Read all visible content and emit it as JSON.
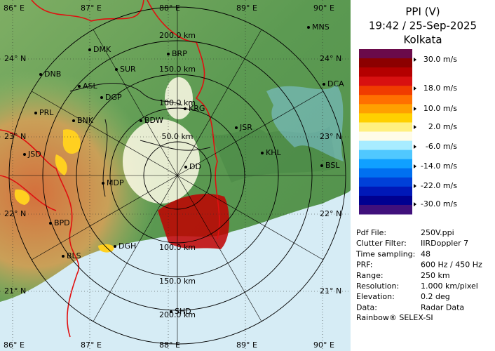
{
  "map": {
    "longitude_labels": [
      "86° E",
      "87° E",
      "88° E",
      "89° E",
      "90° E"
    ],
    "latitude_labels": [
      "24° N",
      "23° N",
      "22° N",
      "21° N"
    ],
    "range_labels": [
      "50.0 km",
      "100.0 km",
      "150.0 km",
      "200.0 km"
    ],
    "places": [
      "MNS",
      "DMK",
      "BRP",
      "DNB",
      "SUR",
      "ASL",
      "DGP",
      "DCA",
      "PRL",
      "BNK",
      "KRG",
      "BDW",
      "JSR",
      "JSD",
      "KHL",
      "BSL",
      "DD",
      "MDP",
      "BPD",
      "DGH",
      "BLS",
      "SHD"
    ]
  },
  "panel": {
    "title": "PPI (V)",
    "time": "19:42 / 25-Sep-2025",
    "site": "Kolkata",
    "scale": {
      "colors": [
        "#6a0a4a",
        "#8c0000",
        "#b40000",
        "#d81010",
        "#f03c00",
        "#ff7000",
        "#ffa000",
        "#ffd000",
        "#fff080",
        "#fffce8",
        "#a8ecff",
        "#50c8ff",
        "#10a0ff",
        "#0070f0",
        "#0040d8",
        "#0018b8",
        "#000090",
        "#40107c"
      ],
      "labels": [
        "30.0 m/s",
        "18.0 m/s",
        "10.0 m/s",
        "2.0 m/s",
        "-6.0 m/s",
        "-14.0 m/s",
        "-22.0 m/s",
        "-30.0 m/s"
      ]
    },
    "info": [
      [
        "Pdf File:",
        "250V.ppi"
      ],
      [
        "Clutter Filter:",
        "IIRDoppler 7"
      ],
      [
        "Time sampling:",
        "48"
      ],
      [
        "PRF:",
        "600 Hz / 450 Hz"
      ],
      [
        "Range:",
        "250 km"
      ],
      [
        "Resolution:",
        "1.000 km/pixel"
      ],
      [
        "Elevation:",
        "0.2 deg"
      ],
      [
        "Data:",
        "Radar Data"
      ]
    ],
    "footer": "Rainbow® SELEX-SI"
  }
}
